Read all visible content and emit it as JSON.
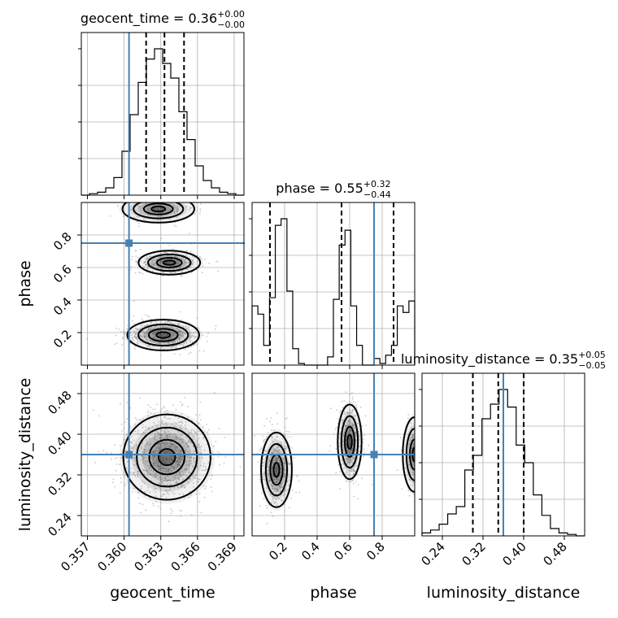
{
  "chart_data": {
    "type": "corner",
    "parameters": [
      {
        "name": "geocent_time",
        "xlabel": "geocent_time",
        "title": "geocent_time = 0.36",
        "title_main": "geocent_time = 0.36",
        "title_plus": "+0.00",
        "title_minus": "−0.00",
        "range": [
          0.3565,
          0.3698
        ],
        "ticks": [
          0.357,
          0.36,
          0.363,
          0.366,
          0.369
        ],
        "tick_labels": [
          "0.357",
          "0.360",
          "0.363",
          "0.366",
          "0.369"
        ],
        "truth": 0.3604,
        "quantiles": [
          0.3618,
          0.3633,
          0.3649
        ],
        "hist": [
          0.0,
          0.01,
          0.02,
          0.05,
          0.12,
          0.3,
          0.55,
          0.77,
          0.93,
          1.0,
          0.9,
          0.8,
          0.57,
          0.38,
          0.2,
          0.1,
          0.05,
          0.02,
          0.01,
          0.0
        ]
      },
      {
        "name": "phase",
        "xlabel": "phase",
        "ylabel": "phase",
        "title": "phase = 0.55",
        "title_main": "phase = 0.55",
        "title_plus": "+0.32",
        "title_minus": "−0.44",
        "range": [
          0.0,
          1.0
        ],
        "ticks": [
          0.2,
          0.4,
          0.6,
          0.8
        ],
        "tick_labels": [
          "0.2",
          "0.4",
          "0.6",
          "0.8"
        ],
        "truth": 0.75,
        "quantiles": [
          0.11,
          0.55,
          0.87
        ],
        "hist": [
          0.36,
          0.31,
          0.12,
          0.41,
          0.85,
          0.89,
          0.45,
          0.1,
          0.01,
          0.0,
          0.0,
          0.0,
          0.0,
          0.05,
          0.4,
          0.73,
          0.82,
          0.36,
          0.12,
          0.0,
          0.0,
          0.04,
          0.01,
          0.06,
          0.12,
          0.36,
          0.32,
          0.39
        ]
      },
      {
        "name": "luminosity_distance",
        "xlabel": "luminosity_distance",
        "ylabel": "luminosity_distance",
        "title": "luminosity_distance = 0.35",
        "title_main": "luminosity_distance = 0.35",
        "title_plus": "+0.05",
        "title_minus": "−0.05",
        "range": [
          0.2,
          0.52
        ],
        "ticks": [
          0.24,
          0.32,
          0.4,
          0.48
        ],
        "tick_labels": [
          "0.24",
          "0.32",
          "0.40",
          "0.48"
        ],
        "truth": 0.36,
        "quantiles": [
          0.3,
          0.35,
          0.4
        ],
        "hist": [
          0.02,
          0.04,
          0.08,
          0.15,
          0.2,
          0.45,
          0.55,
          0.8,
          0.9,
          1.0,
          0.88,
          0.62,
          0.5,
          0.28,
          0.14,
          0.05,
          0.02,
          0.01,
          0.0
        ]
      }
    ],
    "joint": [
      {
        "x": "geocent_time",
        "y": "phase",
        "modes": [
          {
            "cx": 0.3632,
            "cy": 0.185,
            "sx": 0.0014,
            "sy": 0.045,
            "weight": 0.5
          },
          {
            "cx": 0.3637,
            "cy": 0.63,
            "sx": 0.0012,
            "sy": 0.035,
            "weight": 0.35
          },
          {
            "cx": 0.3628,
            "cy": 0.96,
            "sx": 0.0014,
            "sy": 0.04,
            "weight": 0.15
          }
        ]
      },
      {
        "x": "geocent_time",
        "y": "luminosity_distance",
        "modes": [
          {
            "cx": 0.3635,
            "cy": 0.355,
            "sx": 0.0017,
            "sy": 0.04,
            "weight": 1.0
          }
        ]
      },
      {
        "x": "phase",
        "y": "luminosity_distance",
        "modes": [
          {
            "cx": 0.15,
            "cy": 0.33,
            "sx": 0.045,
            "sy": 0.035,
            "weight": 0.45
          },
          {
            "cx": 0.6,
            "cy": 0.385,
            "sx": 0.035,
            "sy": 0.035,
            "weight": 0.4
          },
          {
            "cx": 1.0,
            "cy": 0.36,
            "sx": 0.035,
            "sy": 0.035,
            "weight": 0.15
          }
        ]
      }
    ],
    "colors": {
      "truth": "#4682b4",
      "hist": "#000000",
      "samples": "#9a9a9a",
      "grid": "#b0b0b0"
    }
  }
}
